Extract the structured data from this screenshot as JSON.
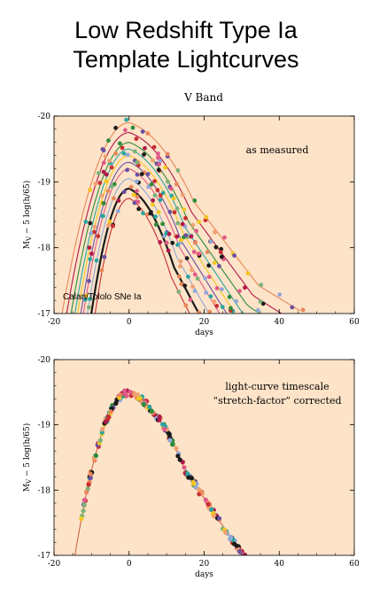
{
  "page": {
    "title_line1": "Low Redshift Type Ia",
    "title_line2": "Template Lightcurves",
    "subtitle": "V Band"
  },
  "colors": {
    "plot_background": "#fde3c8",
    "palette": [
      "#e8865a",
      "#b0184a",
      "#2e8b3a",
      "#2aa6a0",
      "#f2c61f",
      "#6a4fa3",
      "#e05a8a",
      "#90a8d8",
      "#1a1a1a",
      "#c83030",
      "#f0a070",
      "#7ab27a"
    ]
  },
  "chart_data": [
    {
      "type": "scatter",
      "title": "",
      "xlabel": "days",
      "ylabel": "M_V − 5 log(h/65)",
      "xlim": [
        -20,
        60
      ],
      "ylim": [
        -17,
        -20
      ],
      "y_inverted": true,
      "x_ticks": [
        -20,
        0,
        20,
        40,
        60
      ],
      "y_ticks": [
        -20,
        -19,
        -18,
        -17
      ],
      "annotation": "as measured",
      "annotation2": "Calan/Tololo SNe Ia",
      "curve_model": {
        "t_peak": 0,
        "peak_mags": [
          -19.9,
          -19.75,
          -19.6,
          -19.5,
          -19.4,
          -19.3,
          -19.2,
          -19.05,
          -18.9,
          -18.75
        ],
        "stretches": [
          1.15,
          1.1,
          1.05,
          1.0,
          0.97,
          0.93,
          0.9,
          0.85,
          0.8,
          0.75
        ]
      }
    },
    {
      "type": "scatter",
      "title": "",
      "xlabel": "days",
      "ylabel": "M_V − 5 log(h/65)",
      "xlim": [
        -20,
        60
      ],
      "ylim": [
        -17,
        -20
      ],
      "y_inverted": true,
      "x_ticks": [
        -20,
        0,
        20,
        40,
        60
      ],
      "y_ticks": [
        -20,
        -19,
        -18,
        -17
      ],
      "annotation": "light-curve timescale",
      "annotation2": "“stretch-factor” corrected",
      "curve_model": {
        "t_peak": 0,
        "peak_mags": [
          -19.5
        ],
        "stretches": [
          1.0
        ]
      }
    }
  ],
  "labels": {
    "x_tick_labels": [
      "-20",
      "0",
      "20",
      "40",
      "60"
    ],
    "y_tick_labels": [
      "-20",
      "-19",
      "-18",
      "-17"
    ],
    "ylabel_main": "M",
    "ylabel_sub": "V",
    "ylabel_rest": " − 5 log(h/65)"
  }
}
